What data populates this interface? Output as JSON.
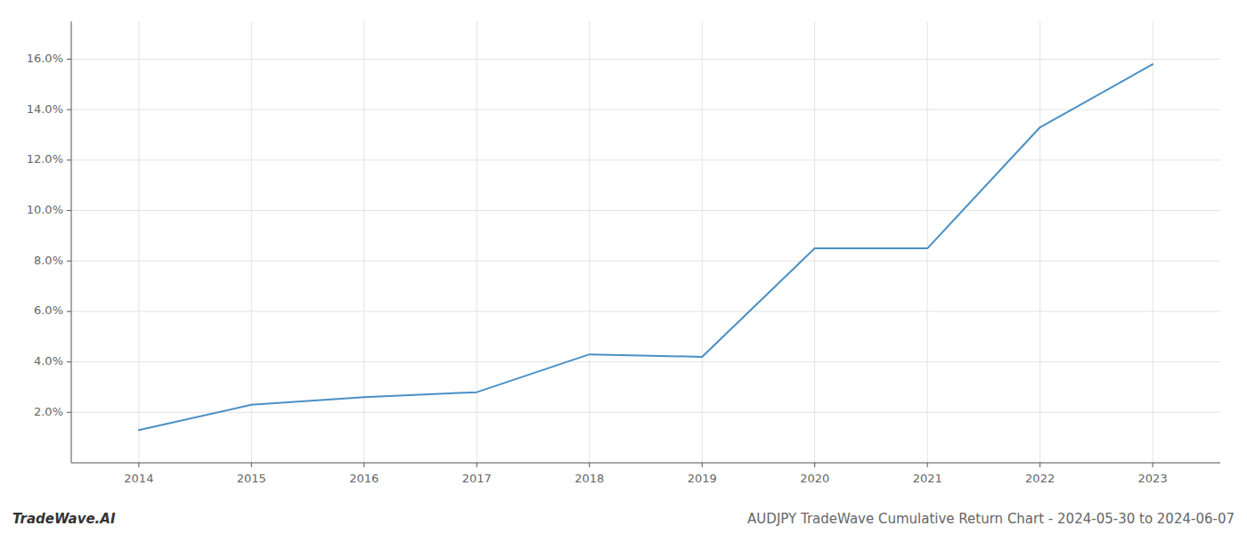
{
  "chart_data": {
    "type": "line",
    "title": "AUDJPY TradeWave Cumulative Return Chart - 2024-05-30 to 2024-06-07",
    "annotations": [
      "TradeWave.AI"
    ],
    "x": [
      2014,
      2015,
      2016,
      2017,
      2018,
      2019,
      2020,
      2021,
      2022,
      2023
    ],
    "values": [
      1.3,
      2.3,
      2.6,
      2.8,
      4.3,
      4.2,
      8.5,
      8.5,
      13.3,
      15.8
    ],
    "color": "#4a90c4",
    "xlim": [
      2013.4,
      2023.6
    ],
    "xticks": [
      2014,
      2015,
      2016,
      2017,
      2018,
      2019,
      2020,
      2021,
      2022,
      2023
    ],
    "ylim": [
      0,
      17.5
    ],
    "yticks": [
      {
        "value": 2.0,
        "label": "2.0%"
      },
      {
        "value": 4.0,
        "label": "4.0%"
      },
      {
        "value": 6.0,
        "label": "6.0%"
      },
      {
        "value": 8.0,
        "label": "8.0%"
      },
      {
        "value": 10.0,
        "label": "10.0%"
      },
      {
        "value": 12.0,
        "label": "12.0%"
      },
      {
        "value": 14.0,
        "label": "14.0%"
      },
      {
        "value": 16.0,
        "label": "16.0%"
      }
    ],
    "grid": true
  }
}
